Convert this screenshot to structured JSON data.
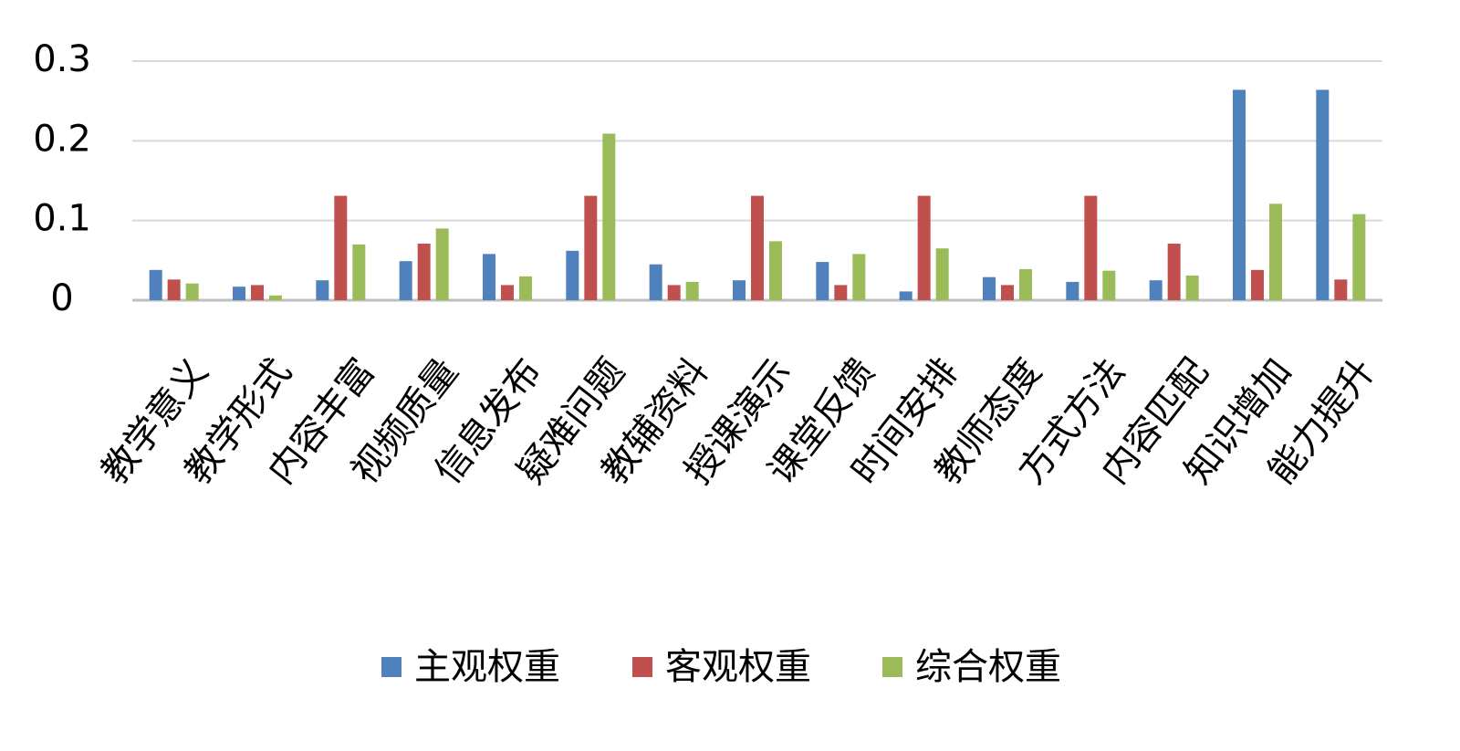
{
  "chart_data": {
    "type": "bar",
    "categories": [
      "教学意义",
      "教学形式",
      "内容丰富",
      "视频质量",
      "信息发布",
      "疑难问题",
      "教辅资料",
      "授课演示",
      "课堂反馈",
      "时间安排",
      "教师态度",
      "方式方法",
      "内容匹配",
      "知识增加",
      "能力提升"
    ],
    "series": [
      {
        "name": "主观权重",
        "color": "#4f81bd",
        "values": [
          0.038,
          0.017,
          0.025,
          0.049,
          0.058,
          0.062,
          0.045,
          0.025,
          0.048,
          0.011,
          0.029,
          0.023,
          0.025,
          0.264,
          0.264
        ]
      },
      {
        "name": "客观权重",
        "color": "#c0504d",
        "values": [
          0.026,
          0.019,
          0.131,
          0.071,
          0.019,
          0.131,
          0.019,
          0.131,
          0.019,
          0.131,
          0.019,
          0.131,
          0.071,
          0.038,
          0.026
        ]
      },
      {
        "name": "综合权重",
        "color": "#9bbb59",
        "values": [
          0.021,
          0.006,
          0.07,
          0.09,
          0.03,
          0.209,
          0.023,
          0.074,
          0.058,
          0.065,
          0.039,
          0.037,
          0.031,
          0.121,
          0.108
        ]
      }
    ],
    "ylim": [
      0,
      0.3
    ],
    "yticks": [
      0,
      0.1,
      0.2,
      0.3
    ],
    "grid": true,
    "legend": "bottom"
  }
}
